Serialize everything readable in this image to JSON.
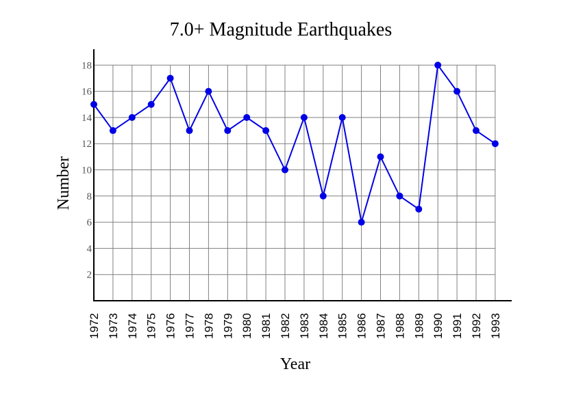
{
  "chart_data": {
    "type": "line",
    "title": "7.0+ Magnitude Earthquakes",
    "xlabel": "Year",
    "ylabel": "Number",
    "categories": [
      "1972",
      "1973",
      "1974",
      "1975",
      "1976",
      "1977",
      "1978",
      "1979",
      "1980",
      "1981",
      "1982",
      "1983",
      "1984",
      "1985",
      "1986",
      "1987",
      "1988",
      "1989",
      "1990",
      "1991",
      "1992",
      "1993"
    ],
    "values": [
      15,
      13,
      14,
      15,
      17,
      13,
      16,
      13,
      14,
      13,
      10,
      14,
      8,
      14,
      6,
      11,
      8,
      7,
      18,
      16,
      13,
      12
    ],
    "yticks": [
      2,
      4,
      6,
      8,
      10,
      12,
      14,
      16,
      18
    ],
    "ylim": [
      0,
      18
    ],
    "grid": true,
    "legend": "none",
    "colors": {
      "series": "#0000e6",
      "grid": "#808080",
      "axis": "#000000"
    }
  }
}
